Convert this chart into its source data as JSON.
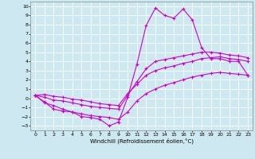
{
  "xlabel": "Windchill (Refroidissement éolien,°C)",
  "bg_color": "#cde8f0",
  "line_color": "#cc00cc",
  "xlim": [
    -0.5,
    23.5
  ],
  "ylim": [
    -3.5,
    10.5
  ],
  "xticks": [
    0,
    1,
    2,
    3,
    4,
    5,
    6,
    7,
    8,
    9,
    10,
    11,
    12,
    13,
    14,
    15,
    16,
    17,
    18,
    19,
    20,
    21,
    22,
    23
  ],
  "yticks": [
    -3,
    -2,
    -1,
    0,
    1,
    2,
    3,
    4,
    5,
    6,
    7,
    8,
    9,
    10
  ],
  "line1_x": [
    0,
    1,
    2,
    3,
    4,
    5,
    6,
    7,
    8,
    9,
    10,
    11,
    12,
    13,
    14,
    15,
    16,
    17,
    18,
    19,
    20,
    21,
    22,
    23
  ],
  "line1_y": [
    0.3,
    -0.4,
    -1.2,
    -1.4,
    -1.5,
    -2.0,
    -2.1,
    -2.3,
    -3.0,
    -2.6,
    0.1,
    3.7,
    7.9,
    9.8,
    9.0,
    8.7,
    9.7,
    8.5,
    5.5,
    4.3,
    4.3,
    4.0,
    4.0,
    2.5
  ],
  "line2_x": [
    0,
    1,
    2,
    3,
    4,
    5,
    6,
    7,
    8,
    9,
    10,
    11,
    12,
    13,
    14,
    15,
    16,
    17,
    18,
    19,
    20,
    21,
    22,
    23
  ],
  "line2_y": [
    0.3,
    0.1,
    -0.2,
    -0.3,
    -0.5,
    -0.7,
    -0.9,
    -1.0,
    -1.1,
    -1.2,
    0.3,
    1.8,
    3.2,
    4.0,
    4.2,
    4.4,
    4.6,
    4.8,
    5.0,
    5.0,
    4.9,
    4.7,
    4.6,
    4.4
  ],
  "line3_x": [
    0,
    1,
    2,
    3,
    4,
    5,
    6,
    7,
    8,
    9,
    10,
    11,
    12,
    13,
    14,
    15,
    16,
    17,
    18,
    19,
    20,
    21,
    22,
    23
  ],
  "line3_y": [
    0.3,
    0.4,
    0.2,
    0.1,
    -0.1,
    -0.2,
    -0.4,
    -0.6,
    -0.7,
    -0.8,
    0.5,
    1.5,
    2.5,
    3.0,
    3.3,
    3.5,
    3.8,
    4.0,
    4.3,
    4.4,
    4.5,
    4.3,
    4.2,
    4.0
  ],
  "line4_x": [
    0,
    1,
    2,
    3,
    4,
    5,
    6,
    7,
    8,
    9,
    10,
    11,
    12,
    13,
    14,
    15,
    16,
    17,
    18,
    19,
    20,
    21,
    22,
    23
  ],
  "line4_y": [
    0.3,
    -0.5,
    -0.8,
    -1.2,
    -1.5,
    -1.7,
    -1.9,
    -2.0,
    -2.1,
    -2.3,
    -1.5,
    -0.3,
    0.5,
    1.0,
    1.4,
    1.7,
    2.0,
    2.3,
    2.5,
    2.7,
    2.8,
    2.7,
    2.6,
    2.5
  ]
}
